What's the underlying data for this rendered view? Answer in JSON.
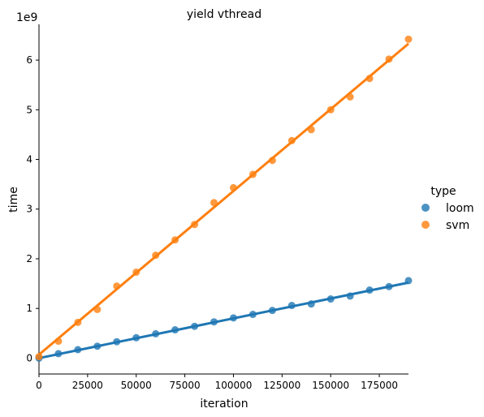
{
  "chart_data": {
    "type": "scatter",
    "title": "yield vthread",
    "xlabel": "iteration",
    "ylabel": "time",
    "y_offset_label": "1e9",
    "xlim": [
      0,
      190000
    ],
    "ylim": [
      -0.32,
      6.72
    ],
    "xticks": [
      0,
      25000,
      50000,
      75000,
      100000,
      125000,
      150000,
      175000
    ],
    "yticks": [
      0,
      1,
      2,
      3,
      4,
      5,
      6
    ],
    "grid": false,
    "legend": {
      "title": "type",
      "placement": "center-right outside"
    },
    "series": [
      {
        "name": "loom",
        "color": "#1f77b4",
        "x": [
          0,
          10000,
          20000,
          30000,
          40000,
          50000,
          60000,
          70000,
          80000,
          90000,
          100000,
          110000,
          120000,
          130000,
          140000,
          150000,
          160000,
          170000,
          180000,
          190000
        ],
        "y": [
          0.0,
          0.09,
          0.17,
          0.24,
          0.33,
          0.41,
          0.49,
          0.57,
          0.64,
          0.73,
          0.81,
          0.88,
          0.96,
          1.06,
          1.09,
          1.19,
          1.25,
          1.37,
          1.44,
          1.56
        ],
        "fit": [
          0.0,
          1.52
        ]
      },
      {
        "name": "svm",
        "color": "#ff7f0e",
        "x": [
          0,
          10000,
          20000,
          30000,
          40000,
          50000,
          60000,
          70000,
          80000,
          90000,
          100000,
          110000,
          120000,
          130000,
          140000,
          150000,
          160000,
          170000,
          180000,
          190000
        ],
        "y": [
          0.03,
          0.34,
          0.72,
          0.98,
          1.45,
          1.73,
          2.07,
          2.38,
          2.69,
          3.13,
          3.43,
          3.7,
          3.98,
          4.38,
          4.6,
          5.0,
          5.26,
          5.63,
          6.02,
          6.42
        ],
        "fit": [
          0.07,
          6.33
        ]
      }
    ]
  }
}
